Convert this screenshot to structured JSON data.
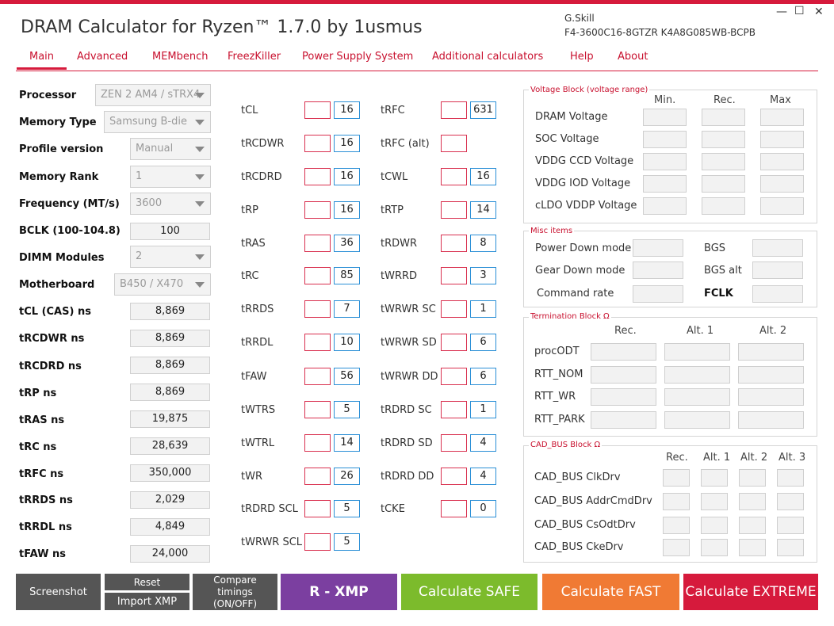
{
  "app": {
    "title": "DRAM Calculator for Ryzen™ 1.7.0 by 1usmus",
    "vendor": "G.Skill",
    "part": "F4-3600C16-8GTZR  K4A8G085WB-BCPB",
    "window": {
      "minimize": "—",
      "maximize": "☐",
      "close": "✕"
    }
  },
  "tabs": [
    "Main",
    "Advanced",
    "MEMbench",
    "FreezKiller",
    "Power Supply System",
    "Additional calculators",
    "Help",
    "About"
  ],
  "settings": {
    "processor": {
      "label": "Processor",
      "value": "ZEN 2 AM4 / sTRX4"
    },
    "memory_type": {
      "label": "Memory Type",
      "value": "Samsung B-die"
    },
    "profile_version": {
      "label": "Profile version",
      "value": "Manual"
    },
    "memory_rank": {
      "label": "Memory Rank",
      "value": "1"
    },
    "frequency": {
      "label": "Frequency (MT/s)",
      "value": "3600"
    },
    "bclk": {
      "label": "BCLK (100-104.8)",
      "value": "100"
    },
    "dimm_modules": {
      "label": "DIMM Modules",
      "value": "2"
    },
    "motherboard": {
      "label": "Motherboard",
      "value": "B450 / X470"
    }
  },
  "ns_values": [
    {
      "label": "tCL (CAS) ns",
      "value": "8,869"
    },
    {
      "label": "tRCDWR ns",
      "value": "8,869"
    },
    {
      "label": "tRCDRD ns",
      "value": "8,869"
    },
    {
      "label": "tRP ns",
      "value": "8,869"
    },
    {
      "label": "tRAS ns",
      "value": "19,875"
    },
    {
      "label": "tRC ns",
      "value": "28,639"
    },
    {
      "label": "tRFC ns",
      "value": "350,000"
    },
    {
      "label": "tRRDS ns",
      "value": "2,029"
    },
    {
      "label": "tRRDL ns",
      "value": "4,849"
    },
    {
      "label": "tFAW ns",
      "value": "24,000"
    }
  ],
  "timings_left": [
    {
      "label": "tCL",
      "value": "16"
    },
    {
      "label": "tRCDWR",
      "value": "16"
    },
    {
      "label": "tRCDRD",
      "value": "16"
    },
    {
      "label": "tRP",
      "value": "16"
    },
    {
      "label": "tRAS",
      "value": "36"
    },
    {
      "label": "tRC",
      "value": "85"
    },
    {
      "label": "tRRDS",
      "value": "7"
    },
    {
      "label": "tRRDL",
      "value": "10"
    },
    {
      "label": "tFAW",
      "value": "56"
    },
    {
      "label": "tWTRS",
      "value": "5"
    },
    {
      "label": "tWTRL",
      "value": "14"
    },
    {
      "label": "tWR",
      "value": "26"
    },
    {
      "label": "tRDRD SCL",
      "value": "5"
    },
    {
      "label": "tWRWR SCL",
      "value": "5"
    }
  ],
  "timings_right": [
    {
      "label": "tRFC",
      "value": "631"
    },
    {
      "label": "tRFC (alt)",
      "value": ""
    },
    {
      "label": "tCWL",
      "value": "16"
    },
    {
      "label": "tRTP",
      "value": "14"
    },
    {
      "label": "tRDWR",
      "value": "8"
    },
    {
      "label": "tWRRD",
      "value": "3"
    },
    {
      "label": "tWRWR SC",
      "value": "1"
    },
    {
      "label": "tWRWR SD",
      "value": "6"
    },
    {
      "label": "tWRWR DD",
      "value": "6"
    },
    {
      "label": "tRDRD SC",
      "value": "1"
    },
    {
      "label": "tRDRD SD",
      "value": "4"
    },
    {
      "label": "tRDRD DD",
      "value": "4"
    },
    {
      "label": "tCKE",
      "value": "0"
    }
  ],
  "voltage_block": {
    "title": "Voltage Block (voltage range)",
    "headers": [
      "Min.",
      "Rec.",
      "Max"
    ],
    "rows": [
      "DRAM Voltage",
      "SOC Voltage",
      "VDDG  CCD Voltage",
      "VDDG  IOD Voltage",
      "cLDO VDDP Voltage"
    ]
  },
  "misc_block": {
    "title": "Misc items",
    "left": [
      "Power Down mode",
      "Gear Down mode",
      "Command rate"
    ],
    "right": [
      "BGS",
      "BGS alt",
      "FCLK"
    ]
  },
  "termination_block": {
    "title": "Termination Block Ω",
    "headers": [
      "Rec.",
      "Alt. 1",
      "Alt. 2"
    ],
    "rows": [
      "procODT",
      "RTT_NOM",
      "RTT_WR",
      "RTT_PARK"
    ]
  },
  "cadbus_block": {
    "title": "CAD_BUS Block Ω",
    "headers": [
      "Rec.",
      "Alt. 1",
      "Alt. 2",
      "Alt. 3"
    ],
    "rows": [
      "CAD_BUS ClkDrv",
      "CAD_BUS AddrCmdDrv",
      "CAD_BUS CsOdtDrv",
      "CAD_BUS CkeDrv"
    ]
  },
  "buttons": {
    "screenshot": "Screenshot",
    "reset": "Reset",
    "import_xmp": "Import XMP",
    "compare": "Compare timings (ON/OFF)",
    "rxmp": "R - XMP",
    "safe": "Calculate SAFE",
    "fast": "Calculate FAST",
    "extreme": "Calculate EXTREME"
  },
  "colors": {
    "accent": "#d61a3c",
    "rxmp": "#7b3fa0",
    "safe": "#7cbb2c",
    "fast": "#f07a34",
    "extreme": "#d61a3c",
    "gray_button": "#555555"
  }
}
